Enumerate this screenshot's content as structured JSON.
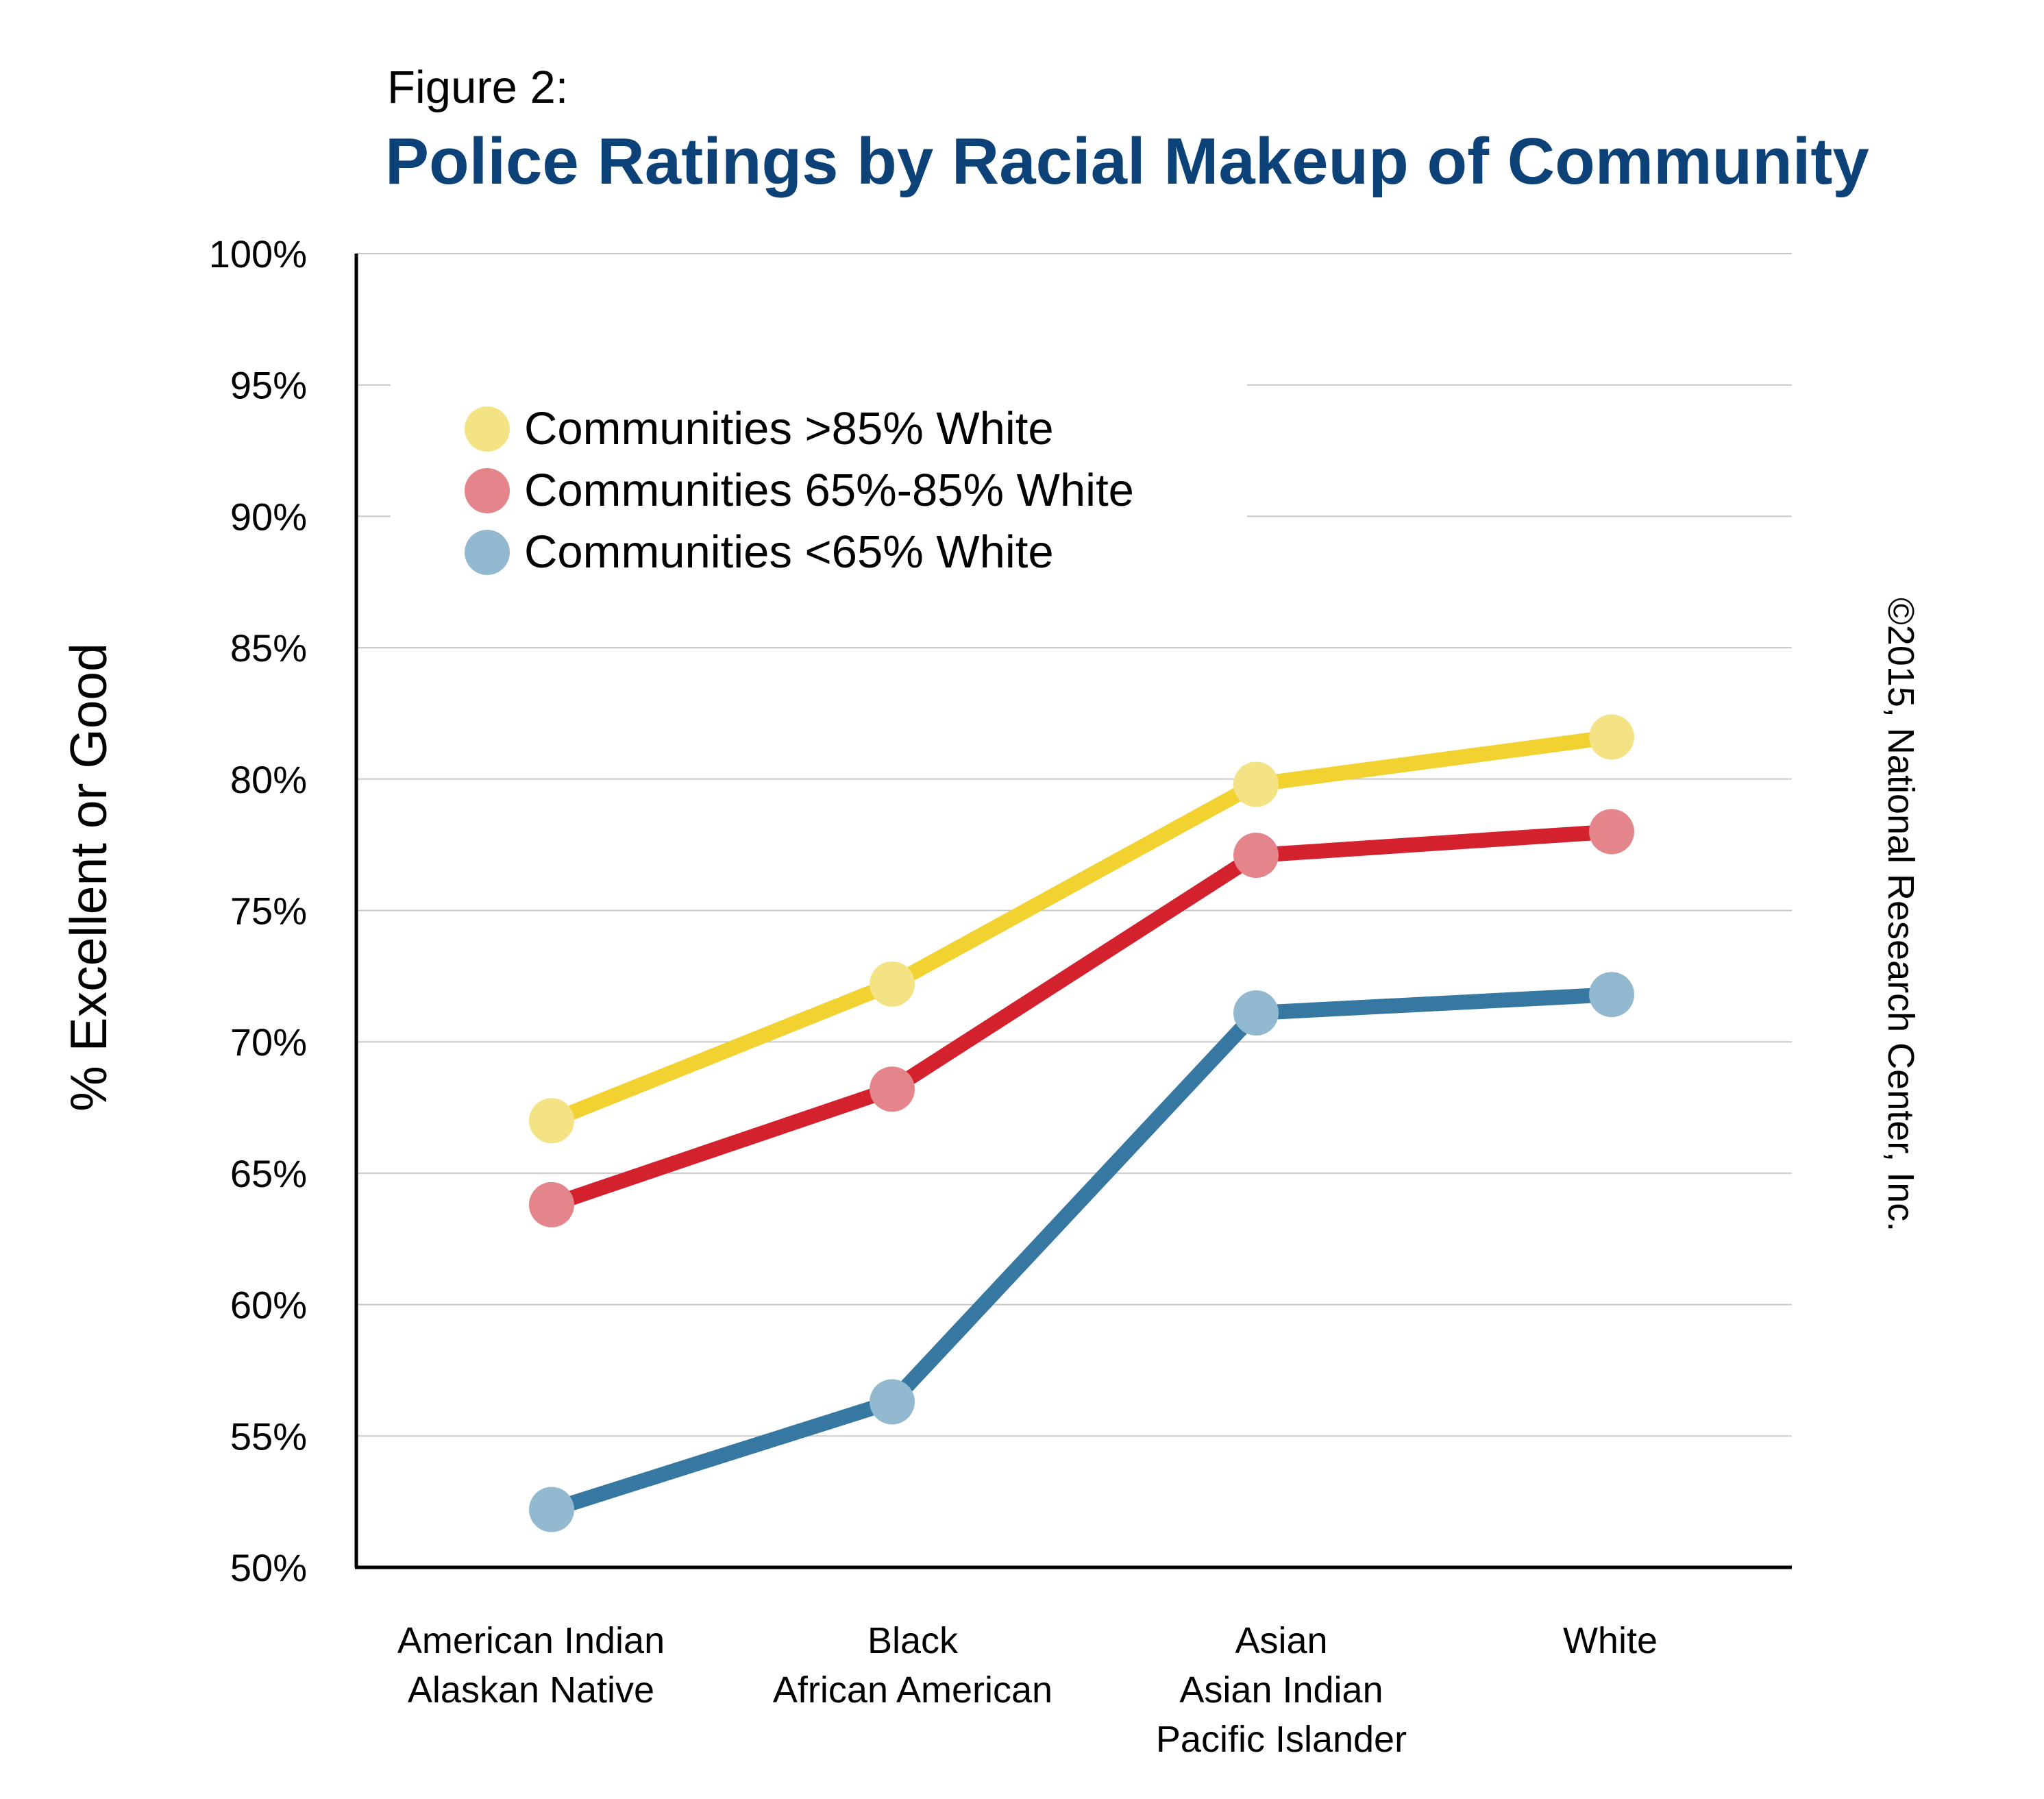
{
  "figure_label": "Figure 2:",
  "title": "Police Ratings by Racial Makeup of Community",
  "copyright": "©2015, National Research Center, Inc.",
  "colors": {
    "title": "#0c4278",
    "text": "#000000",
    "grid": "#c8c8c8",
    "axis": "#000000"
  },
  "chart_data": {
    "type": "line",
    "title": "Police Ratings by Racial Makeup of Community",
    "ylabel": "% Excellent or Good",
    "xlabel": "",
    "ylim": [
      50,
      100
    ],
    "ytick_step": 5,
    "ytick_suffix": "%",
    "grid": true,
    "legend_position": "top-left",
    "categories": [
      [
        "American Indian",
        "Alaskan Native"
      ],
      [
        "Black",
        "African American"
      ],
      [
        "Asian",
        "Asian Indian",
        "Pacific Islander"
      ],
      [
        "White"
      ]
    ],
    "series": [
      {
        "name": "Communities >85% White",
        "values": [
          67.0,
          72.2,
          79.8,
          81.6
        ],
        "line_color": "#f2d231",
        "marker_color": "#f4e384"
      },
      {
        "name": "Communities 65%-85% White",
        "values": [
          63.8,
          68.2,
          77.1,
          78.0
        ],
        "line_color": "#d3212d",
        "marker_color": "#e4858c"
      },
      {
        "name": "Communities <65% White",
        "values": [
          52.2,
          56.3,
          71.1,
          71.8
        ],
        "line_color": "#3678a1",
        "marker_color": "#92b9cf"
      }
    ]
  }
}
